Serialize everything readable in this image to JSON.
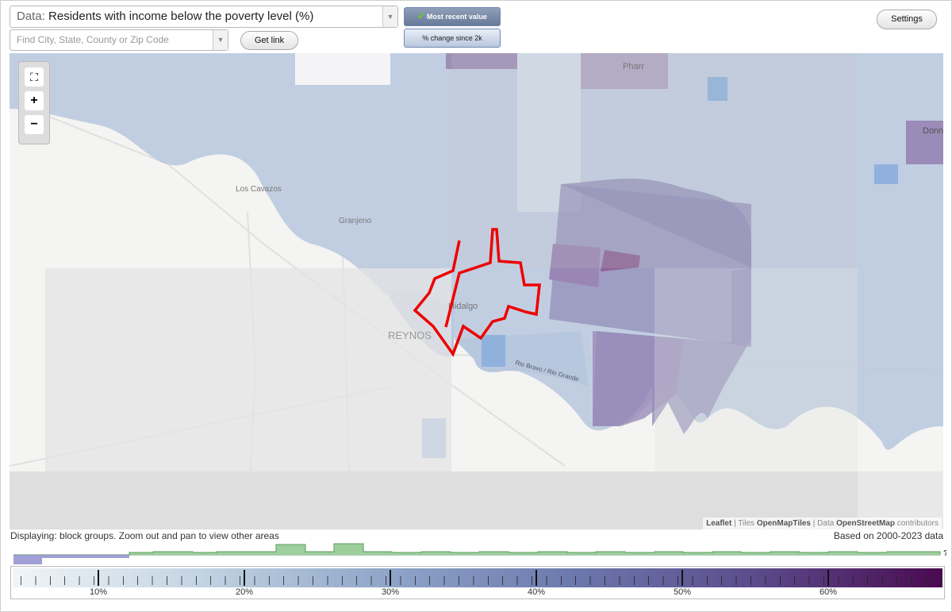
{
  "toolbar": {
    "data_label": "Data:",
    "data_value": "Residents with income below the poverty level (%)",
    "search_placeholder": "Find City, State, County or Zip Code",
    "get_link": "Get link",
    "mode_buttons": [
      "Most recent value",
      "% change since 2k"
    ],
    "settings": "Settings"
  },
  "map": {
    "labels": [
      "Los Cavazos",
      "Granjeno",
      "Hidalgo",
      "REYNOS",
      "Pharr",
      "Donna",
      "Rio Bravo / Rio Grande"
    ],
    "attribution": {
      "leaflet": "Leaflet",
      "tiles_label": "| Tiles",
      "tiles": "OpenMapTiles",
      "data_label": "| Data",
      "data": "OpenStreetMap",
      "contributors": "contributors"
    }
  },
  "status": {
    "displaying": "Displaying: block groups. Zoom out and pan to view other areas",
    "based_on": "Based on 2000-2023 data",
    "help": "?"
  },
  "legend": {
    "ticks": [
      "10%",
      "20%",
      "30%",
      "40%",
      "50%",
      "60%"
    ]
  }
}
